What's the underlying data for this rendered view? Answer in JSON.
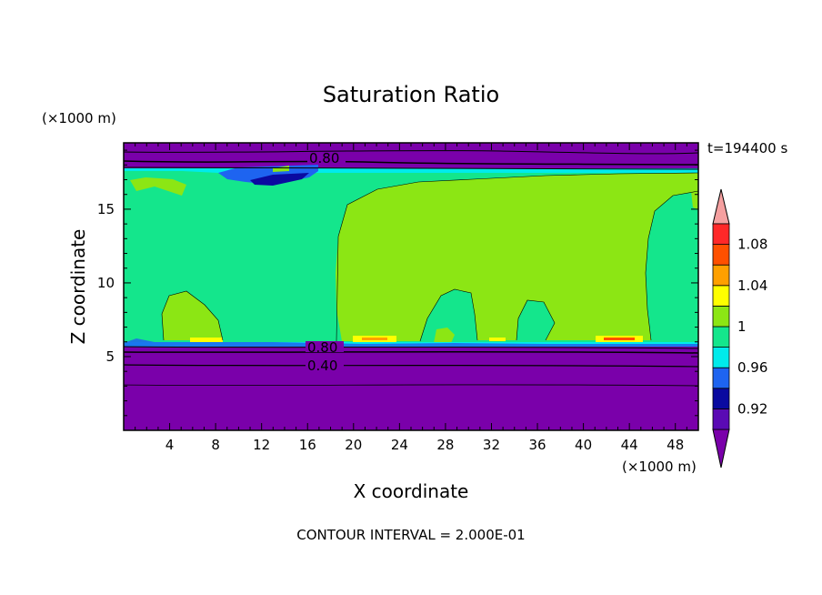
{
  "chart_data": {
    "type": "heatmap",
    "title": "Saturation Ratio",
    "xlabel": "X coordinate",
    "ylabel": "Z coordinate",
    "x_unit": "(×1000 m)",
    "y_unit": "(×1000 m)",
    "time_label": "t=194400 s",
    "footer": "CONTOUR INTERVAL = 2.000E-01",
    "xlim": [
      0,
      50
    ],
    "ylim": [
      0,
      19.5
    ],
    "x_ticks": [
      4,
      8,
      12,
      16,
      20,
      24,
      28,
      32,
      36,
      40,
      44,
      48
    ],
    "y_ticks": [
      5,
      10,
      15
    ],
    "contour_line_labels": [
      {
        "text": "0.80",
        "x": 17.5,
        "z": 18.4
      },
      {
        "text": "0.80",
        "x": 17.3,
        "z": 5.8
      },
      {
        "text": "0.40",
        "x": 17.3,
        "z": 4.5
      }
    ],
    "colorbar": {
      "labels": [
        "1.08",
        "1.04",
        "1",
        "0.96",
        "0.92"
      ],
      "bins": [
        {
          "lower": 0.9,
          "upper": 0.92,
          "color": "#5a0ab4"
        },
        {
          "lower": 0.92,
          "upper": 0.94,
          "color": "#0a0aa0"
        },
        {
          "lower": 0.94,
          "upper": 0.96,
          "color": "#1e64f0"
        },
        {
          "lower": 0.96,
          "upper": 0.98,
          "color": "#00ebeb"
        },
        {
          "lower": 0.98,
          "upper": 1.0,
          "color": "#14e68c"
        },
        {
          "lower": 1.0,
          "upper": 1.02,
          "color": "#8ce614"
        },
        {
          "lower": 1.02,
          "upper": 1.04,
          "color": "#ffff00"
        },
        {
          "lower": 1.04,
          "upper": 1.06,
          "color": "#ffa000"
        },
        {
          "lower": 1.06,
          "upper": 1.08,
          "color": "#ff5000"
        },
        {
          "lower": 1.08,
          "upper": 1.1,
          "color": "#ff2828"
        }
      ],
      "below_color": "#7a00aa",
      "above_color": "#f5a0a0"
    },
    "regions": {
      "upper_dry_band": {
        "z": [
          18,
          19.5
        ],
        "value": "<0.90",
        "color": "#7a00aa"
      },
      "cloud_layer": {
        "z": [
          6,
          18
        ],
        "value": "0.98-1.00",
        "color": "#14e68c"
      },
      "lower_dry_layer": {
        "z": [
          0,
          6
        ],
        "value": "<0.90",
        "color": "#7a00aa"
      }
    }
  }
}
